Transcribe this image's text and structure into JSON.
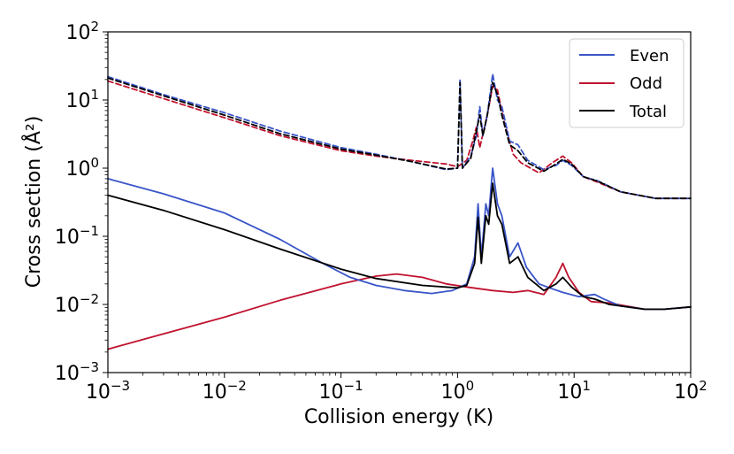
{
  "chart_data": {
    "type": "line",
    "xscale": "log",
    "yscale": "log",
    "xlim": [
      0.001,
      100
    ],
    "ylim": [
      0.001,
      100
    ],
    "xlabel": "Collision energy (K)",
    "ylabel": "Cross section (Å²)",
    "x_ticks": [
      {
        "mant": "10",
        "exp": "−3",
        "value": 0.001
      },
      {
        "mant": "10",
        "exp": "−2",
        "value": 0.01
      },
      {
        "mant": "10",
        "exp": "−1",
        "value": 0.1
      },
      {
        "mant": "10",
        "exp": "0",
        "value": 1
      },
      {
        "mant": "10",
        "exp": "1",
        "value": 10
      },
      {
        "mant": "10",
        "exp": "2",
        "value": 100
      }
    ],
    "y_ticks": [
      {
        "mant": "10",
        "exp": "−3",
        "value": 0.001
      },
      {
        "mant": "10",
        "exp": "−2",
        "value": 0.01
      },
      {
        "mant": "10",
        "exp": "−1",
        "value": 0.1
      },
      {
        "mant": "10",
        "exp": "0",
        "value": 1
      },
      {
        "mant": "10",
        "exp": "1",
        "value": 10
      },
      {
        "mant": "10",
        "exp": "2",
        "value": 100
      }
    ],
    "legend": {
      "position": "top-right",
      "entries": [
        {
          "label": "Even",
          "color": "#3a55c8"
        },
        {
          "label": "Odd",
          "color": "#c0122e"
        },
        {
          "label": "Total",
          "color": "#000000"
        }
      ]
    },
    "series": [
      {
        "name": "Even (solid)",
        "group": "Even",
        "style": "solid",
        "color": "#3a55c8",
        "points": [
          [
            0.001,
            0.7
          ],
          [
            0.003,
            0.42
          ],
          [
            0.01,
            0.22
          ],
          [
            0.03,
            0.09
          ],
          [
            0.07,
            0.04
          ],
          [
            0.12,
            0.025
          ],
          [
            0.2,
            0.019
          ],
          [
            0.35,
            0.016
          ],
          [
            0.6,
            0.0145
          ],
          [
            0.9,
            0.016
          ],
          [
            1.2,
            0.02
          ],
          [
            1.4,
            0.05
          ],
          [
            1.5,
            0.3
          ],
          [
            1.6,
            0.05
          ],
          [
            1.75,
            0.3
          ],
          [
            1.85,
            0.2
          ],
          [
            2.0,
            1.0
          ],
          [
            2.2,
            0.3
          ],
          [
            2.4,
            0.2
          ],
          [
            2.8,
            0.05
          ],
          [
            3.3,
            0.08
          ],
          [
            3.9,
            0.035
          ],
          [
            5.0,
            0.02
          ],
          [
            6.5,
            0.017
          ],
          [
            8.0,
            0.015
          ],
          [
            11,
            0.013
          ],
          [
            15,
            0.014
          ],
          [
            18,
            0.012
          ],
          [
            25,
            0.0095
          ],
          [
            40,
            0.0085
          ],
          [
            60,
            0.0085
          ],
          [
            100,
            0.0092
          ]
        ]
      },
      {
        "name": "Odd (solid)",
        "group": "Odd",
        "style": "solid",
        "color": "#c0122e",
        "points": [
          [
            0.001,
            0.0022
          ],
          [
            0.003,
            0.0037
          ],
          [
            0.01,
            0.0065
          ],
          [
            0.03,
            0.0115
          ],
          [
            0.1,
            0.02
          ],
          [
            0.2,
            0.026
          ],
          [
            0.3,
            0.028
          ],
          [
            0.5,
            0.025
          ],
          [
            0.8,
            0.02
          ],
          [
            1.2,
            0.018
          ],
          [
            2.0,
            0.016
          ],
          [
            3.0,
            0.015
          ],
          [
            4.0,
            0.016
          ],
          [
            5.5,
            0.014
          ],
          [
            7.0,
            0.025
          ],
          [
            8.0,
            0.04
          ],
          [
            9.0,
            0.025
          ],
          [
            11,
            0.015
          ],
          [
            14,
            0.011
          ],
          [
            20,
            0.0105
          ],
          [
            40,
            0.0085
          ],
          [
            60,
            0.0085
          ],
          [
            100,
            0.0092
          ]
        ]
      },
      {
        "name": "Total (solid)",
        "group": "Total",
        "style": "solid",
        "color": "#000000",
        "points": [
          [
            0.001,
            0.4
          ],
          [
            0.003,
            0.24
          ],
          [
            0.01,
            0.125
          ],
          [
            0.03,
            0.065
          ],
          [
            0.1,
            0.033
          ],
          [
            0.2,
            0.024
          ],
          [
            0.5,
            0.019
          ],
          [
            1.0,
            0.0175
          ],
          [
            1.2,
            0.019
          ],
          [
            1.4,
            0.04
          ],
          [
            1.5,
            0.19
          ],
          [
            1.6,
            0.04
          ],
          [
            1.75,
            0.2
          ],
          [
            1.85,
            0.15
          ],
          [
            2.0,
            0.6
          ],
          [
            2.2,
            0.2
          ],
          [
            2.4,
            0.15
          ],
          [
            2.8,
            0.04
          ],
          [
            3.3,
            0.05
          ],
          [
            4.0,
            0.025
          ],
          [
            5.5,
            0.016
          ],
          [
            7.0,
            0.02
          ],
          [
            8.0,
            0.025
          ],
          [
            9.5,
            0.018
          ],
          [
            12,
            0.013
          ],
          [
            15,
            0.012
          ],
          [
            20,
            0.01
          ],
          [
            40,
            0.0085
          ],
          [
            60,
            0.0085
          ],
          [
            100,
            0.0092
          ]
        ]
      },
      {
        "name": "Even (dashed)",
        "group": "Even",
        "style": "dashed",
        "color": "#3a55c8",
        "points": [
          [
            0.001,
            22
          ],
          [
            0.003,
            12
          ],
          [
            0.01,
            6.5
          ],
          [
            0.03,
            3.5
          ],
          [
            0.1,
            2.0
          ],
          [
            0.2,
            1.6
          ],
          [
            0.4,
            1.25
          ],
          [
            0.8,
            0.95
          ],
          [
            1.0,
            1.0
          ],
          [
            1.05,
            20
          ],
          [
            1.1,
            1.0
          ],
          [
            1.3,
            1.5
          ],
          [
            1.45,
            3
          ],
          [
            1.55,
            8
          ],
          [
            1.65,
            3
          ],
          [
            1.8,
            6
          ],
          [
            2.0,
            24
          ],
          [
            2.2,
            10
          ],
          [
            2.4,
            8
          ],
          [
            2.8,
            2.5
          ],
          [
            3.3,
            2.2
          ],
          [
            4.0,
            1.3
          ],
          [
            5.5,
            0.95
          ],
          [
            7.0,
            1.1
          ],
          [
            8.0,
            1.3
          ],
          [
            9.5,
            1.1
          ],
          [
            12,
            0.75
          ],
          [
            16,
            0.65
          ],
          [
            25,
            0.45
          ],
          [
            50,
            0.36
          ],
          [
            100,
            0.36
          ]
        ]
      },
      {
        "name": "Odd (dashed)",
        "group": "Odd",
        "style": "dashed",
        "color": "#c0122e",
        "points": [
          [
            0.001,
            19
          ],
          [
            0.003,
            10.5
          ],
          [
            0.01,
            5.5
          ],
          [
            0.03,
            3.0
          ],
          [
            0.1,
            1.8
          ],
          [
            0.2,
            1.5
          ],
          [
            0.4,
            1.3
          ],
          [
            0.8,
            1.15
          ],
          [
            1.0,
            1.05
          ],
          [
            1.2,
            1.3
          ],
          [
            1.35,
            2.5
          ],
          [
            1.45,
            4
          ],
          [
            1.55,
            2
          ],
          [
            1.8,
            6
          ],
          [
            2.0,
            16
          ],
          [
            2.2,
            14
          ],
          [
            2.5,
            5
          ],
          [
            3.0,
            1.6
          ],
          [
            3.5,
            1.2
          ],
          [
            5.0,
            0.85
          ],
          [
            6.5,
            1.2
          ],
          [
            8.0,
            1.5
          ],
          [
            9.5,
            1.2
          ],
          [
            12,
            0.75
          ],
          [
            16,
            0.62
          ],
          [
            25,
            0.45
          ],
          [
            50,
            0.36
          ],
          [
            100,
            0.36
          ]
        ]
      },
      {
        "name": "Total (dashed)",
        "group": "Total",
        "style": "dashed",
        "color": "#000000",
        "points": [
          [
            0.001,
            21
          ],
          [
            0.003,
            11.5
          ],
          [
            0.01,
            6
          ],
          [
            0.03,
            3.2
          ],
          [
            0.1,
            1.9
          ],
          [
            0.2,
            1.55
          ],
          [
            0.4,
            1.25
          ],
          [
            0.8,
            0.97
          ],
          [
            1.0,
            1.0
          ],
          [
            1.05,
            18
          ],
          [
            1.1,
            1.0
          ],
          [
            1.3,
            1.4
          ],
          [
            1.45,
            3.5
          ],
          [
            1.55,
            6
          ],
          [
            1.65,
            3
          ],
          [
            1.8,
            6
          ],
          [
            2.0,
            18
          ],
          [
            2.2,
            12
          ],
          [
            2.4,
            6
          ],
          [
            2.8,
            2.2
          ],
          [
            3.3,
            1.8
          ],
          [
            4.0,
            1.2
          ],
          [
            5.5,
            0.9
          ],
          [
            7.0,
            1.15
          ],
          [
            8.0,
            1.35
          ],
          [
            9.5,
            1.15
          ],
          [
            12,
            0.75
          ],
          [
            16,
            0.64
          ],
          [
            25,
            0.45
          ],
          [
            50,
            0.36
          ],
          [
            100,
            0.36
          ]
        ]
      }
    ]
  }
}
